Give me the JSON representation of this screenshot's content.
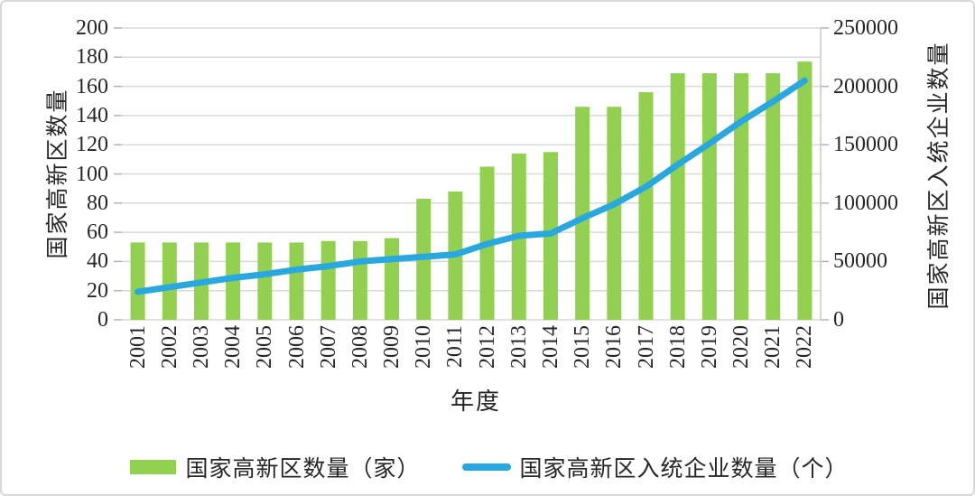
{
  "chart_data": {
    "type": "bar",
    "subtype": "combo-bar-line-dual-axis",
    "categories": [
      "2001",
      "2002",
      "2003",
      "2004",
      "2005",
      "2006",
      "2007",
      "2008",
      "2009",
      "2010",
      "2011",
      "2012",
      "2013",
      "2014",
      "2015",
      "2016",
      "2017",
      "2018",
      "2019",
      "2020",
      "2021",
      "2022"
    ],
    "series": [
      {
        "name": "国家高新区数量（家）",
        "type": "bar",
        "axis": "left",
        "color": "#92d050",
        "values": [
          53,
          53,
          53,
          53,
          53,
          53,
          54,
          54,
          56,
          83,
          88,
          105,
          114,
          115,
          146,
          146,
          156,
          169,
          169,
          169,
          169,
          177
        ]
      },
      {
        "name": "国家高新区入统企业数量（个）",
        "type": "line",
        "axis": "right",
        "color": "#29a8df",
        "values": [
          24000,
          28000,
          32000,
          36000,
          39000,
          43000,
          46000,
          50000,
          52000,
          54000,
          56000,
          65000,
          72000,
          74000,
          87000,
          99000,
          114000,
          133000,
          151000,
          170000,
          187000,
          205000
        ]
      }
    ],
    "left_axis": {
      "title": "国家高新区数量",
      "min": 0,
      "max": 200,
      "step": 20,
      "ticks": [
        "0",
        "20",
        "40",
        "60",
        "80",
        "100",
        "120",
        "140",
        "160",
        "180",
        "200"
      ]
    },
    "right_axis": {
      "title": "国家高新区入统企业数量",
      "min": 0,
      "max": 250000,
      "step": 50000,
      "ticks": [
        "0",
        "50000",
        "100000",
        "150000",
        "200000",
        "250000"
      ]
    },
    "x_axis": {
      "title": "年度"
    },
    "legend": [
      {
        "label": "国家高新区数量（家）",
        "swatch": "bar"
      },
      {
        "label": "国家高新区入统企业数量（个）",
        "swatch": "line"
      }
    ],
    "grid": true,
    "legend_position": "bottom",
    "colors": {
      "gridline": "#d9d9d9",
      "axis_line": "#c9c9c9",
      "tick_mark": "#b3b3b3",
      "text": "#262626",
      "frame_border": "#d9d9d9",
      "background": "#ffffff"
    }
  }
}
